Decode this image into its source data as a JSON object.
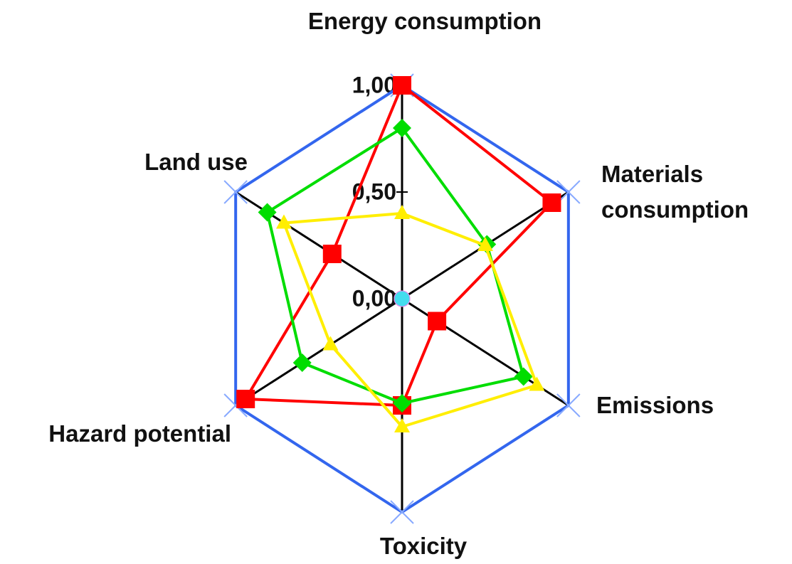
{
  "chart_data": {
    "type": "radar",
    "categories": [
      "Energy consumption",
      "Materials consumption",
      "Emissions",
      "Toxicity",
      "Hazard potential",
      "Land use"
    ],
    "ylim": [
      0,
      1
    ],
    "yticks": [
      {
        "value": 0,
        "label": "0,00"
      },
      {
        "value": 0.5,
        "label": "0,50"
      },
      {
        "value": 1,
        "label": "1,00"
      }
    ],
    "series": [
      {
        "color": "#3366ee",
        "marker": "x",
        "values": [
          1,
          1,
          1,
          1,
          1,
          1
        ]
      },
      {
        "color": "#ff0000",
        "marker": "square",
        "values": [
          1,
          0.9,
          0.21,
          0.5,
          0.94,
          0.42
        ]
      },
      {
        "color": "#00dd00",
        "marker": "diamond",
        "values": [
          0.8,
          0.51,
          0.73,
          0.49,
          0.6,
          0.81
        ]
      },
      {
        "color": "#ffee00",
        "marker": "triangle",
        "values": [
          0.4,
          0.5,
          0.81,
          0.6,
          0.43,
          0.71
        ]
      },
      {
        "color": "#44ddee",
        "marker": "circle",
        "values": [
          0,
          0,
          0,
          0,
          0,
          0
        ]
      }
    ]
  }
}
